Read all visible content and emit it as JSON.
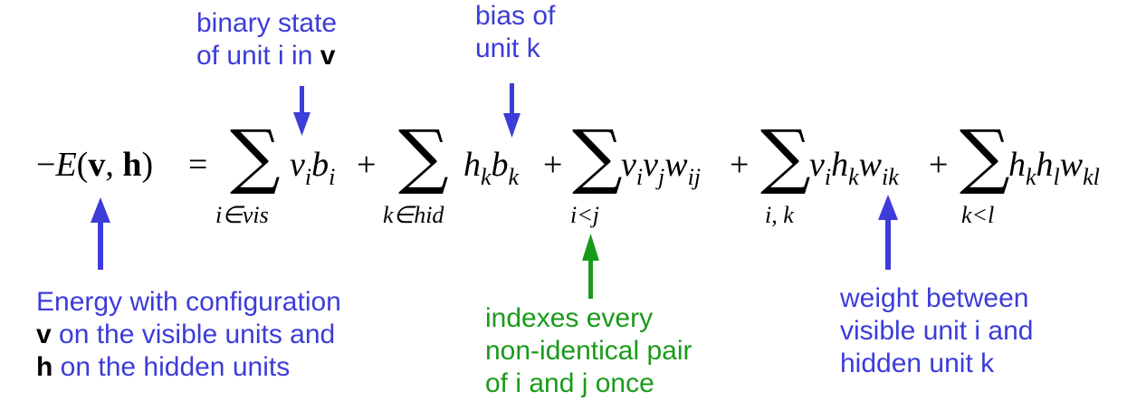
{
  "colors": {
    "blue": "#3c3cd9",
    "green": "#1a9a1a",
    "black": "#000000"
  },
  "annotations": {
    "binary_state": {
      "line1": "binary state",
      "line2_pre": "of unit i in ",
      "line2_bold": "v"
    },
    "bias": {
      "line1": "bias of",
      "line2": "unit k"
    },
    "energy": {
      "line1": "Energy with configuration",
      "line2_bold": "v",
      "line2_rest": " on the visible units and",
      "line3_bold": "h",
      "line3_rest": " on the hidden units"
    },
    "indexes": {
      "line1": "indexes every",
      "line2": "non-identical pair",
      "line3": "of i and j once"
    },
    "weight": {
      "line1": "weight between",
      "line2": "visible unit i and",
      "line3": "hidden unit k"
    }
  },
  "equation": {
    "lhs": "−E(v,h) =",
    "minus": "−",
    "E": "E",
    "args": "(v,h)",
    "equals": "=",
    "plus": "+",
    "sum_symbol": "∑",
    "term1": {
      "limit": "i∈vis",
      "a": "v",
      "a_sub": "i",
      "b": "b",
      "b_sub": "i"
    },
    "term2": {
      "limit": "k∈hid",
      "a": "h",
      "a_sub": "k",
      "b": "b",
      "b_sub": "k"
    },
    "term3": {
      "limit": "i<j",
      "a": "v",
      "a_sub": "i",
      "b": "v",
      "b_sub": "j",
      "c": "w",
      "c_sub": "ij"
    },
    "term4": {
      "limit": "i, k",
      "a": "v",
      "a_sub": "i",
      "b": "h",
      "b_sub": "k",
      "c": "w",
      "c_sub": "ik"
    },
    "term5": {
      "limit": "k<l",
      "a": "h",
      "a_sub": "k",
      "b": "h",
      "b_sub": "l",
      "c": "w",
      "c_sub": "kl"
    }
  }
}
